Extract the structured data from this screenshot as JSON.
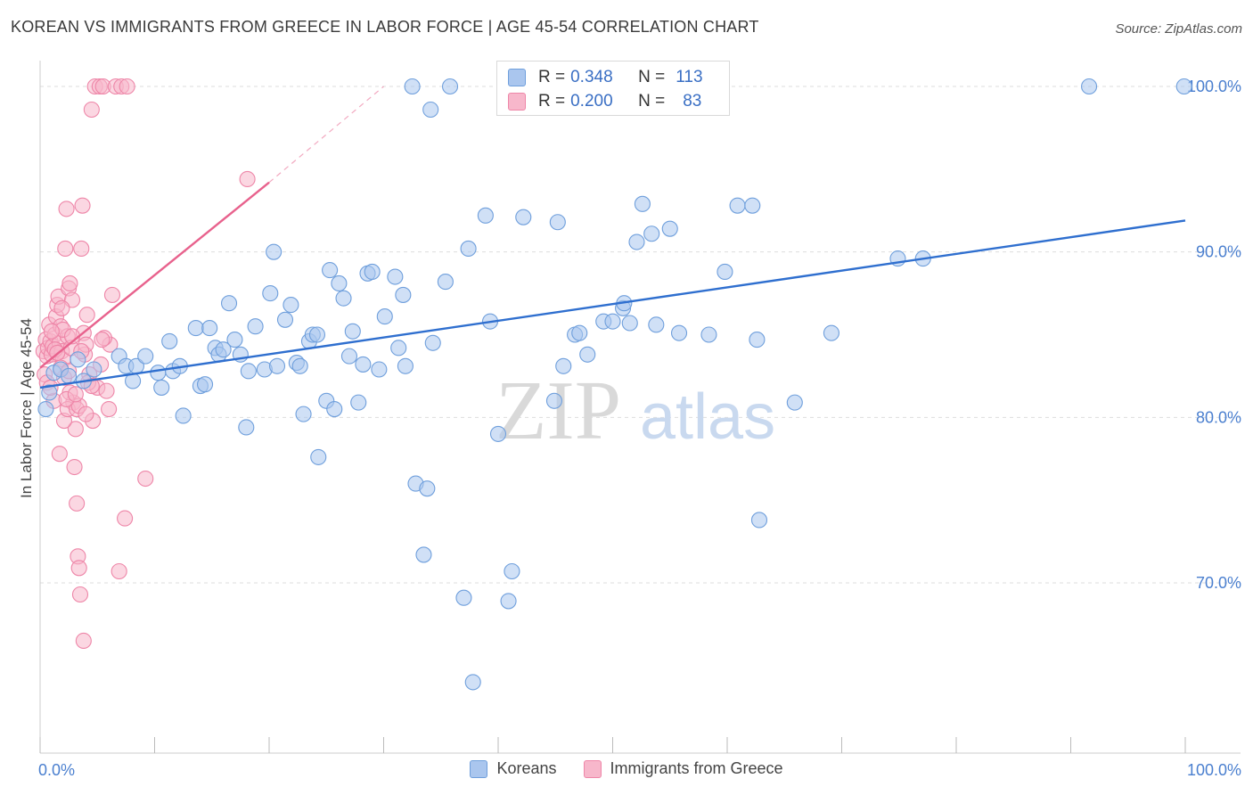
{
  "header": {
    "title": "KOREAN VS IMMIGRANTS FROM GREECE IN LABOR FORCE | AGE 45-54 CORRELATION CHART",
    "source": "Source: ZipAtlas.com"
  },
  "watermark": {
    "part1": "ZIP",
    "part2": "atlas"
  },
  "colors": {
    "koreans_fill": "#aac6ee",
    "koreans_stroke": "#6f9fdc",
    "koreans_line": "#2f6fcf",
    "greece_fill": "#f7b7cb",
    "greece_stroke": "#ee86a8",
    "greece_line": "#e8628d",
    "axis_label": "#4a7fcf"
  },
  "stats_legend": [
    {
      "r_label": "R =",
      "r_value": "0.348",
      "n_label": "N =",
      "n_value": "113"
    },
    {
      "r_label": "R =",
      "r_value": "0.200",
      "n_label": "N =",
      "n_value": "83"
    }
  ],
  "bottom_legend": [
    "Koreans",
    "Immigrants from Greece"
  ],
  "chart_data": {
    "type": "scatter",
    "title": "KOREAN VS IMMIGRANTS FROM GREECE IN LABOR FORCE | AGE 45-54 CORRELATION CHART",
    "xlabel": "",
    "ylabel": "In Labor Force | Age 45-54",
    "xlim": [
      0,
      100
    ],
    "ylim": [
      61,
      101.5
    ],
    "x_tick_labels": [
      "0.0%",
      "100.0%"
    ],
    "y_ticks": [
      70,
      80,
      90,
      100
    ],
    "y_tick_labels": [
      "70.0%",
      "80.0%",
      "90.0%",
      "100.0%"
    ],
    "grid": true,
    "legend_position": "top-center",
    "series": [
      {
        "name": "Koreans",
        "r": 0.348,
        "n": 113,
        "trend": {
          "x": [
            0,
            100
          ],
          "y": [
            81.8,
            91.9
          ]
        },
        "points": [
          [
            0.5,
            80.5
          ],
          [
            0.8,
            81.5
          ],
          [
            1.2,
            82.7
          ],
          [
            1.8,
            82.9
          ],
          [
            2.5,
            82.5
          ],
          [
            3.3,
            83.5
          ],
          [
            3.8,
            82.2
          ],
          [
            4.7,
            82.9
          ],
          [
            6.9,
            83.7
          ],
          [
            7.5,
            83.1
          ],
          [
            8.1,
            82.2
          ],
          [
            8.4,
            83.1
          ],
          [
            9.2,
            83.7
          ],
          [
            10.3,
            82.7
          ],
          [
            10.6,
            81.8
          ],
          [
            11.3,
            84.6
          ],
          [
            11.6,
            82.8
          ],
          [
            12.2,
            83.1
          ],
          [
            12.5,
            80.1
          ],
          [
            13.6,
            85.4
          ],
          [
            14.0,
            81.9
          ],
          [
            14.4,
            82.0
          ],
          [
            14.8,
            85.4
          ],
          [
            15.3,
            84.2
          ],
          [
            15.6,
            83.8
          ],
          [
            16.0,
            84.1
          ],
          [
            16.5,
            86.9
          ],
          [
            17.0,
            84.7
          ],
          [
            17.5,
            83.8
          ],
          [
            18.0,
            79.4
          ],
          [
            18.2,
            82.8
          ],
          [
            18.8,
            85.5
          ],
          [
            19.6,
            82.9
          ],
          [
            20.1,
            87.5
          ],
          [
            20.4,
            90.0
          ],
          [
            20.7,
            83.1
          ],
          [
            21.4,
            85.9
          ],
          [
            21.9,
            86.8
          ],
          [
            22.4,
            83.3
          ],
          [
            22.7,
            83.1
          ],
          [
            23.0,
            80.2
          ],
          [
            23.5,
            84.6
          ],
          [
            23.8,
            85.0
          ],
          [
            24.2,
            85.0
          ],
          [
            24.3,
            77.6
          ],
          [
            25.0,
            81.0
          ],
          [
            25.3,
            88.9
          ],
          [
            25.7,
            80.5
          ],
          [
            26.1,
            88.1
          ],
          [
            26.5,
            87.2
          ],
          [
            27.0,
            83.7
          ],
          [
            27.3,
            85.2
          ],
          [
            27.8,
            80.9
          ],
          [
            28.2,
            83.2
          ],
          [
            28.6,
            88.7
          ],
          [
            29.0,
            88.8
          ],
          [
            29.6,
            82.9
          ],
          [
            30.1,
            86.1
          ],
          [
            31.0,
            88.5
          ],
          [
            31.3,
            84.2
          ],
          [
            31.7,
            87.4
          ],
          [
            31.9,
            83.1
          ],
          [
            32.5,
            100.0
          ],
          [
            32.8,
            76.0
          ],
          [
            33.8,
            75.7
          ],
          [
            34.1,
            98.6
          ],
          [
            34.3,
            84.5
          ],
          [
            35.4,
            88.2
          ],
          [
            35.8,
            100.0
          ],
          [
            37.0,
            69.1
          ],
          [
            37.4,
            90.2
          ],
          [
            37.8,
            64.0
          ],
          [
            38.9,
            92.2
          ],
          [
            39.3,
            85.8
          ],
          [
            40.0,
            79.0
          ],
          [
            40.9,
            68.9
          ],
          [
            41.2,
            70.7
          ],
          [
            42.2,
            92.1
          ],
          [
            44.9,
            81.0
          ],
          [
            45.2,
            91.8
          ],
          [
            45.7,
            83.1
          ],
          [
            46.7,
            85.0
          ],
          [
            47.1,
            85.1
          ],
          [
            47.8,
            83.8
          ],
          [
            49.2,
            85.8
          ],
          [
            50.0,
            85.8
          ],
          [
            50.9,
            86.6
          ],
          [
            51.0,
            86.9
          ],
          [
            51.5,
            85.7
          ],
          [
            52.1,
            90.6
          ],
          [
            52.6,
            92.9
          ],
          [
            53.4,
            91.1
          ],
          [
            53.8,
            85.6
          ],
          [
            55.0,
            91.4
          ],
          [
            55.8,
            85.1
          ],
          [
            58.4,
            85.0
          ],
          [
            59.8,
            88.8
          ],
          [
            60.9,
            92.8
          ],
          [
            62.2,
            92.8
          ],
          [
            62.6,
            84.7
          ],
          [
            62.8,
            73.8
          ],
          [
            65.9,
            80.9
          ],
          [
            69.1,
            85.1
          ],
          [
            74.9,
            89.6
          ],
          [
            77.1,
            89.6
          ],
          [
            91.6,
            100.0
          ],
          [
            99.9,
            100.0
          ],
          [
            33.5,
            71.7
          ]
        ]
      },
      {
        "name": "Immigrants from Greece",
        "r": 0.2,
        "n": 83,
        "trend": {
          "x": [
            0,
            20
          ],
          "y": [
            83.0,
            94.2
          ]
        },
        "trend_dashed_extension": {
          "x": [
            20,
            30
          ],
          "y": [
            94.2,
            100.0
          ]
        },
        "points": [
          [
            0.3,
            84.0
          ],
          [
            0.4,
            82.6
          ],
          [
            0.5,
            84.7
          ],
          [
            0.6,
            83.7
          ],
          [
            0.7,
            84.2
          ],
          [
            0.8,
            85.6
          ],
          [
            0.9,
            84.6
          ],
          [
            1.0,
            83.8
          ],
          [
            1.1,
            84.3
          ],
          [
            1.2,
            81.0
          ],
          [
            1.3,
            85.0
          ],
          [
            1.4,
            86.1
          ],
          [
            1.5,
            86.8
          ],
          [
            1.6,
            87.3
          ],
          [
            1.7,
            84.5
          ],
          [
            1.8,
            85.5
          ],
          [
            1.9,
            84.0
          ],
          [
            2.0,
            83.5
          ],
          [
            2.1,
            82.4
          ],
          [
            2.2,
            90.2
          ],
          [
            2.3,
            92.6
          ],
          [
            2.4,
            84.9
          ],
          [
            2.5,
            87.8
          ],
          [
            2.6,
            88.1
          ],
          [
            2.7,
            84.2
          ],
          [
            2.8,
            87.1
          ],
          [
            2.9,
            80.9
          ],
          [
            3.0,
            77.0
          ],
          [
            3.1,
            79.3
          ],
          [
            3.2,
            74.8
          ],
          [
            3.3,
            71.6
          ],
          [
            3.4,
            70.9
          ],
          [
            3.5,
            69.3
          ],
          [
            2.1,
            79.8
          ],
          [
            2.4,
            80.5
          ],
          [
            3.6,
            90.2
          ],
          [
            3.7,
            92.8
          ],
          [
            3.8,
            85.1
          ],
          [
            3.9,
            83.8
          ],
          [
            4.0,
            84.4
          ],
          [
            4.1,
            86.2
          ],
          [
            4.3,
            82.6
          ],
          [
            4.5,
            98.6
          ],
          [
            4.8,
            100.0
          ],
          [
            5.2,
            100.0
          ],
          [
            5.5,
            100.0
          ],
          [
            6.1,
            84.4
          ],
          [
            6.3,
            87.4
          ],
          [
            6.6,
            100.0
          ],
          [
            7.1,
            100.0
          ],
          [
            7.6,
            100.0
          ],
          [
            3.2,
            80.5
          ],
          [
            3.4,
            80.7
          ],
          [
            3.8,
            66.5
          ],
          [
            4.6,
            79.8
          ],
          [
            5.0,
            81.8
          ],
          [
            5.3,
            83.2
          ],
          [
            5.6,
            84.8
          ],
          [
            6.0,
            80.5
          ],
          [
            6.9,
            70.7
          ],
          [
            7.4,
            73.9
          ],
          [
            9.2,
            76.3
          ],
          [
            1.7,
            77.8
          ],
          [
            2.6,
            81.5
          ],
          [
            2.0,
            85.3
          ],
          [
            1.9,
            86.6
          ],
          [
            1.3,
            84.1
          ],
          [
            2.8,
            84.9
          ],
          [
            1.0,
            85.2
          ],
          [
            0.6,
            82.1
          ],
          [
            1.5,
            83.9
          ],
          [
            2.3,
            81.1
          ],
          [
            3.1,
            81.4
          ],
          [
            4.2,
            82.1
          ],
          [
            5.4,
            84.7
          ],
          [
            4.0,
            80.2
          ],
          [
            1.8,
            83.0
          ],
          [
            2.5,
            82.8
          ],
          [
            3.6,
            84.0
          ],
          [
            0.9,
            81.8
          ],
          [
            18.1,
            94.4
          ],
          [
            4.5,
            81.9
          ],
          [
            5.8,
            81.6
          ]
        ]
      }
    ]
  }
}
